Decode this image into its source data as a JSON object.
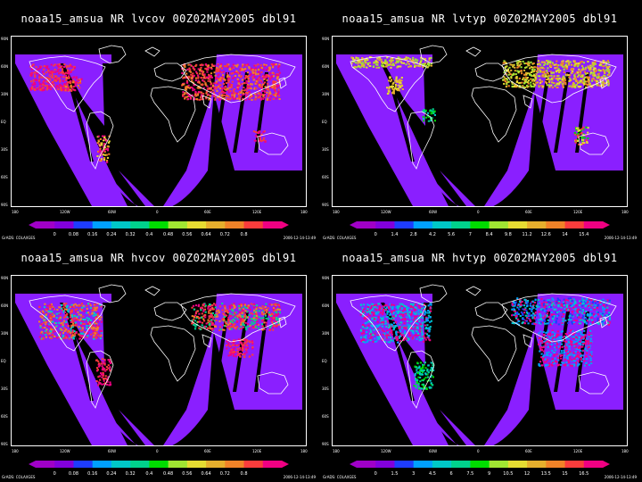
{
  "panels": [
    {
      "title": "noaa15_amsua NR lvcov 00Z02MAY2005 dbl91",
      "colorbar_labels": [
        "0",
        "0.08",
        "0.16",
        "0.24",
        "0.32",
        "0.4",
        "0.48",
        "0.56",
        "0.64",
        "0.72",
        "0.8"
      ],
      "scheme": "lvcov"
    },
    {
      "title": "noaa15_amsua NR lvtyp 00Z02MAY2005 dbl91",
      "colorbar_labels": [
        "0",
        "1.4",
        "2.8",
        "4.2",
        "5.6",
        "7",
        "8.4",
        "9.8",
        "11.2",
        "12.6",
        "14",
        "15.4"
      ],
      "scheme": "lvtyp"
    },
    {
      "title": "noaa15_amsua NR hvcov 00Z02MAY2005 dbl91",
      "colorbar_labels": [
        "0",
        "0.08",
        "0.16",
        "0.24",
        "0.32",
        "0.4",
        "0.48",
        "0.56",
        "0.64",
        "0.72",
        "0.8"
      ],
      "scheme": "hvcov"
    },
    {
      "title": "noaa15_amsua NR hvtyp 00Z02MAY2005 dbl91",
      "colorbar_labels": [
        "0",
        "1.5",
        "3",
        "4.5",
        "6",
        "7.5",
        "9",
        "10.5",
        "12",
        "13.5",
        "15",
        "16.5"
      ],
      "scheme": "hvtyp"
    }
  ],
  "lat_labels": [
    "90N",
    "60N",
    "30N",
    "EQ",
    "30S",
    "60S",
    "90S"
  ],
  "lon_labels": [
    "180",
    "120W",
    "60W",
    "0",
    "60E",
    "120E",
    "180"
  ],
  "footer": {
    "left": "GrADS: COLA/IGES",
    "right": "2006-12-14-13:49"
  },
  "colorbar_colors": [
    "#a000c8",
    "#8200dc",
    "#1e3cff",
    "#00a0ff",
    "#00c8c8",
    "#00d28c",
    "#00dc00",
    "#a0e632",
    "#e6dc32",
    "#e6af2d",
    "#f08228",
    "#fa3c3c",
    "#f00082"
  ],
  "colors": {
    "swath": "#8a1fff",
    "coast": "#ffffff",
    "background": "#000000"
  }
}
